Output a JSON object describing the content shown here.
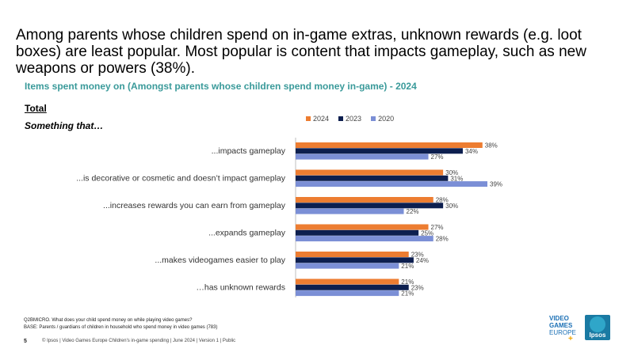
{
  "headline": "Among parents whose children spend on in-game extras, unknown rewards (e.g. loot boxes) are least popular. Most popular is content that impacts gameplay, such as new weapons or powers (38%).",
  "subtitle": "Items spent money on (Amongst parents whose children spend money in-game) - 2024",
  "total_label": "Total",
  "something_label": "Something that…",
  "colors": {
    "2024": "#ed7d31",
    "2023": "#0d1f4f",
    "2020": "#7b8fd6"
  },
  "chart_data": {
    "type": "bar",
    "orientation": "horizontal",
    "categories": [
      "...impacts gameplay",
      "...is decorative or cosmetic and doesn’t impact gameplay",
      "...increases rewards you can earn from gameplay",
      "...expands gameplay",
      "...makes videogames easier to play",
      "…has unknown rewards"
    ],
    "series": [
      {
        "name": "2024",
        "values": [
          38,
          30,
          28,
          27,
          23,
          21
        ]
      },
      {
        "name": "2023",
        "values": [
          34,
          31,
          30,
          25,
          24,
          23
        ]
      },
      {
        "name": "2020",
        "values": [
          27,
          39,
          22,
          28,
          21,
          21
        ]
      }
    ],
    "xlim": [
      0,
      40
    ],
    "value_suffix": "%",
    "legend_position": "top"
  },
  "footnotes": [
    "Q2BMICRO. What does your child spend money on while playing video games?",
    "BASE: Parents / guardians of children in household who spend money in video games (783)"
  ],
  "page_number": "5",
  "footer": "© Ipsos | Video Games Europe Children's in-game spending | June 2024 | Version 1 | Public",
  "logos": {
    "vge": [
      "VIDEO",
      "GAMES",
      "EUROPE",
      "+"
    ],
    "ipsos": "Ipsos"
  }
}
